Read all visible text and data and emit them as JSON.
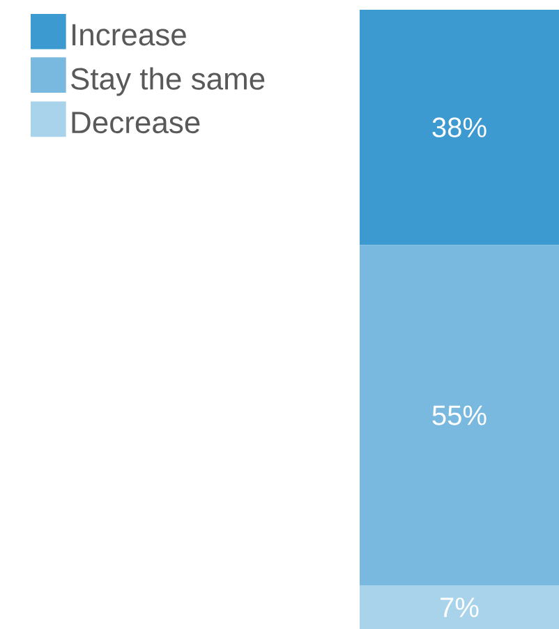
{
  "chart_data": {
    "type": "bar",
    "stacked": true,
    "categories": [
      null
    ],
    "legend": "top left",
    "series": [
      {
        "name": "Decrease",
        "color": "#a9d3ea",
        "values": [
          7
        ],
        "value_labels": [
          "7%"
        ]
      },
      {
        "name": "Stay the same",
        "color": "#79b9df",
        "values": [
          55
        ],
        "value_labels": [
          "55%"
        ]
      },
      {
        "name": "Increase",
        "color": "#3d9ad0",
        "values": [
          38
        ],
        "value_labels": [
          "38%"
        ]
      }
    ]
  }
}
